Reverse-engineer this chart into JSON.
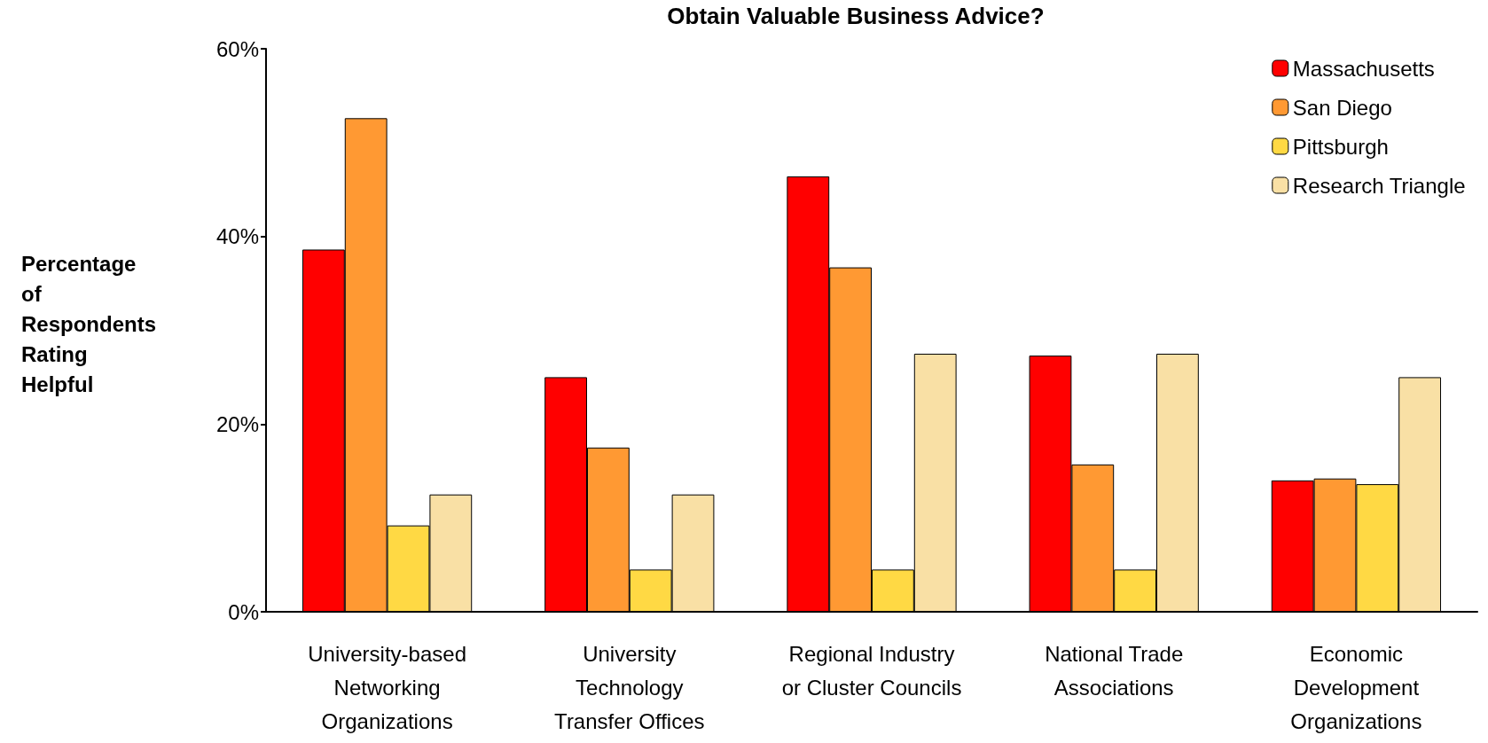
{
  "chart_data": {
    "type": "bar",
    "title": "Obtain Valuable Business Advice?",
    "ylabel": "Percentage\nof\nRespondents\nRating\nHelpful",
    "categories": [
      "University-based\nNetworking\nOrganizations",
      "University\nTechnology\nTransfer Offices",
      "Regional Industry\nor Cluster Councils",
      "National Trade\nAssociations",
      "Economic\nDevelopment\nOrganizations"
    ],
    "series": [
      {
        "name": "Massachusetts",
        "color": "#ff0000",
        "values": [
          38.6,
          25.0,
          46.4,
          27.3,
          14.0
        ]
      },
      {
        "name": "San Diego",
        "color": "#ff9933",
        "values": [
          52.6,
          17.5,
          36.7,
          15.7,
          14.2
        ]
      },
      {
        "name": "Pittsburgh",
        "color": "#ffd944",
        "values": [
          9.2,
          4.5,
          4.5,
          4.5,
          13.6
        ]
      },
      {
        "name": "Research Triangle",
        "color": "#f9e0a5",
        "values": [
          12.5,
          12.5,
          27.5,
          27.5,
          25.0
        ]
      }
    ],
    "ylim": [
      0,
      60
    ],
    "yticks": [
      {
        "value": 0,
        "label": "0%"
      },
      {
        "value": 20,
        "label": "20%"
      },
      {
        "value": 40,
        "label": "40%"
      },
      {
        "value": 60,
        "label": "60%"
      }
    ],
    "grid": false,
    "legend": "top right"
  }
}
